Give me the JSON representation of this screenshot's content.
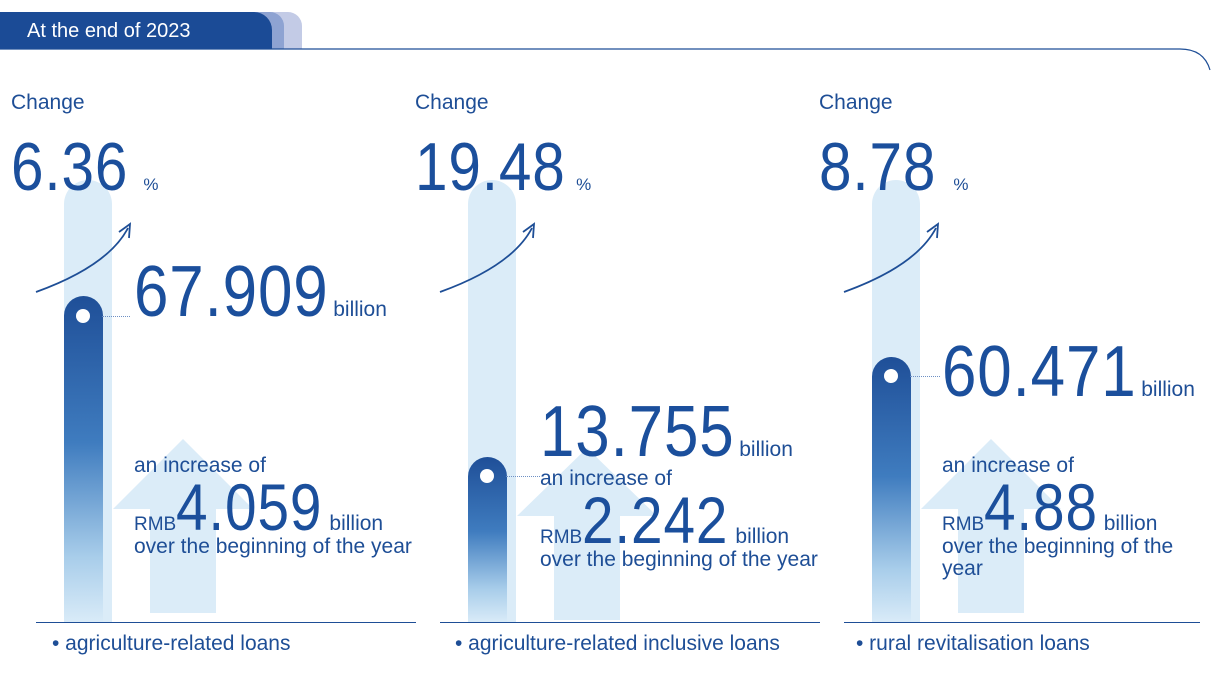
{
  "header": {
    "title": "At the end of 2023"
  },
  "colors": {
    "primary": "#1b4b96",
    "light_bar": "#dbecf8",
    "accent_light": "#8ea3d2"
  },
  "columns": [
    {
      "change_label": "Change",
      "change_value": "6.36",
      "change_unit": "%",
      "balance_value": "67.909",
      "balance_unit": "billion",
      "increase_label": "an increase of",
      "increase_prefix": "RMB",
      "increase_value": "4.059",
      "increase_unit": "billion",
      "increase_suffix": "over the beginning of the year",
      "caption": "• agriculture-related loans"
    },
    {
      "change_label": "Change",
      "change_value": "19.48",
      "change_unit": "%",
      "balance_value": "13.755",
      "balance_unit": "billion",
      "increase_label": "an increase of",
      "increase_prefix": "RMB",
      "increase_value": "2.242",
      "increase_unit": "billion",
      "increase_suffix": "over the beginning of the year",
      "caption": "• agriculture-related inclusive loans"
    },
    {
      "change_label": "Change",
      "change_value": "8.78",
      "change_unit": "%",
      "balance_value": "60.471",
      "balance_unit": "billion",
      "increase_label": "an increase of",
      "increase_prefix": "RMB",
      "increase_value": "4.88",
      "increase_unit": "billion",
      "increase_suffix": "over the beginning of the year",
      "caption": "• rural revitalisation loans"
    }
  ]
}
